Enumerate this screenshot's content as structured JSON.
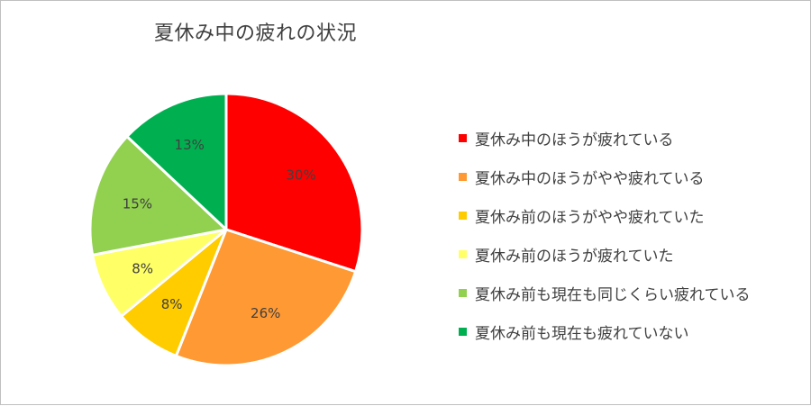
{
  "chart_data": {
    "type": "pie",
    "title": "夏休み中の疲れの状況",
    "categories": [
      "夏休み中のほうが疲れている",
      "夏休み中のほうがやや疲れている",
      "夏休み前のほうがやや疲れていた",
      "夏休み前のほうが疲れていた",
      "夏休み前も現在も同じくらい疲れている",
      "夏休み前も現在も疲れていない"
    ],
    "values": [
      30,
      26,
      8,
      8,
      15,
      13
    ],
    "data_labels": [
      "30%",
      "26%",
      "8%",
      "8%",
      "15%",
      "13%"
    ],
    "colors": [
      "#ff0000",
      "#ff9933",
      "#ffcc00",
      "#ffff66",
      "#92d050",
      "#00b050"
    ],
    "legend_position": "right",
    "start_angle": "12 o'clock",
    "direction": "clockwise"
  }
}
